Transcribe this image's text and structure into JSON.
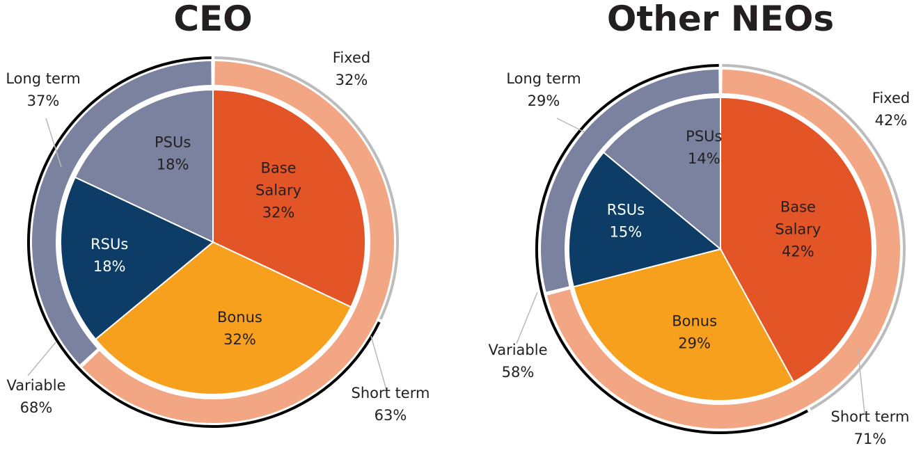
{
  "chart_data": [
    {
      "type": "pie",
      "title": "CEO",
      "inner_slices": [
        {
          "label": "Base Salary",
          "value": 32,
          "display": "32%",
          "color": "#e35526"
        },
        {
          "label": "Bonus",
          "value": 32,
          "display": "32%",
          "color": "#f7a01e"
        },
        {
          "label": "RSUs",
          "value": 18,
          "display": "18%",
          "color": "#0d3d66"
        },
        {
          "label": "PSUs",
          "value": 18,
          "display": "18%",
          "color": "#7b829f"
        }
      ],
      "middle_ring": [
        {
          "label": "Short term",
          "value": 63,
          "display": "63%",
          "color": "#f2a683"
        },
        {
          "label": "Long term",
          "value": 37,
          "display": "37%",
          "color": "#7b829f"
        }
      ],
      "outer_ring": [
        {
          "label": "Fixed",
          "value": 32,
          "display": "32%",
          "color": "#bcbcbc"
        },
        {
          "label": "Variable",
          "value": 68,
          "display": "68%",
          "color": "#000000"
        }
      ]
    },
    {
      "type": "pie",
      "title": "Other NEOs",
      "inner_slices": [
        {
          "label": "Base Salary",
          "value": 42,
          "display": "42%",
          "color": "#e35526"
        },
        {
          "label": "Bonus",
          "value": 29,
          "display": "29%",
          "color": "#f7a01e"
        },
        {
          "label": "RSUs",
          "value": 15,
          "display": "15%",
          "color": "#0d3d66"
        },
        {
          "label": "PSUs",
          "value": 14,
          "display": "14%",
          "color": "#7b829f"
        }
      ],
      "middle_ring": [
        {
          "label": "Short term",
          "value": 71,
          "display": "71%",
          "color": "#f2a683"
        },
        {
          "label": "Long term",
          "value": 29,
          "display": "29%",
          "color": "#7b829f"
        }
      ],
      "outer_ring": [
        {
          "label": "Fixed",
          "value": 42,
          "display": "42%",
          "color": "#bcbcbc"
        },
        {
          "label": "Variable",
          "value": 58,
          "display": "58%",
          "color": "#000000"
        }
      ]
    }
  ]
}
